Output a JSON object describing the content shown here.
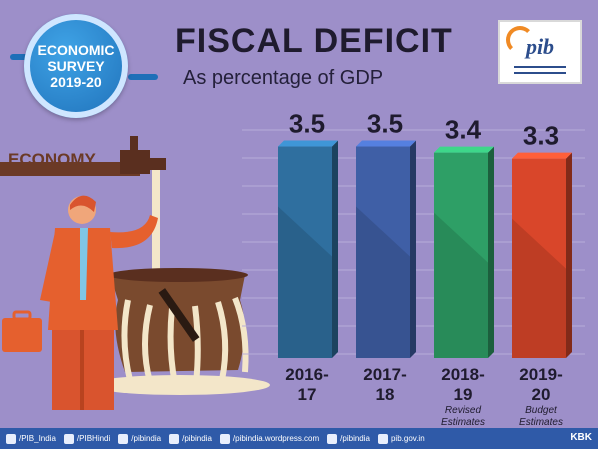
{
  "badge": {
    "line1": "ECONOMIC",
    "line2": "SURVEY",
    "line3": "2019-20"
  },
  "header": {
    "title": "FISCAL DEFICIT",
    "subtitle": "As percentage of GDP"
  },
  "logo": {
    "text": "pib"
  },
  "illustration": {
    "economy_label": "ECONOMY"
  },
  "chart_data": {
    "type": "bar",
    "title": "FISCAL DEFICIT",
    "subtitle": "As percentage of GDP",
    "categories": [
      "2016-17",
      "2017-18",
      "2018-19",
      "2019-20"
    ],
    "category_lines": [
      [
        "2016-",
        "17"
      ],
      [
        "2017-",
        "18"
      ],
      [
        "2018-",
        "19"
      ],
      [
        "2019-",
        "20"
      ]
    ],
    "notes": [
      [],
      [],
      [
        "Revised",
        "Estimates"
      ],
      [
        "Budget",
        "Estimates"
      ]
    ],
    "values": [
      3.5,
      3.5,
      3.4,
      3.3
    ],
    "value_labels": [
      "3.5",
      "3.5",
      "3.4",
      "3.3"
    ],
    "colors": [
      "#2f6f9f",
      "#3f5fa6",
      "#2e9f66",
      "#d9462a"
    ],
    "ylim": [
      0,
      4
    ],
    "grid": true,
    "legend": "none"
  },
  "footer": {
    "items": [
      "/PIB_India",
      "/PIBHindi",
      "/pibindia",
      "/pibindia",
      "/pibindia.wordpress.com",
      "/pibindia",
      "pib.gov.in"
    ],
    "credit": "KBK"
  }
}
